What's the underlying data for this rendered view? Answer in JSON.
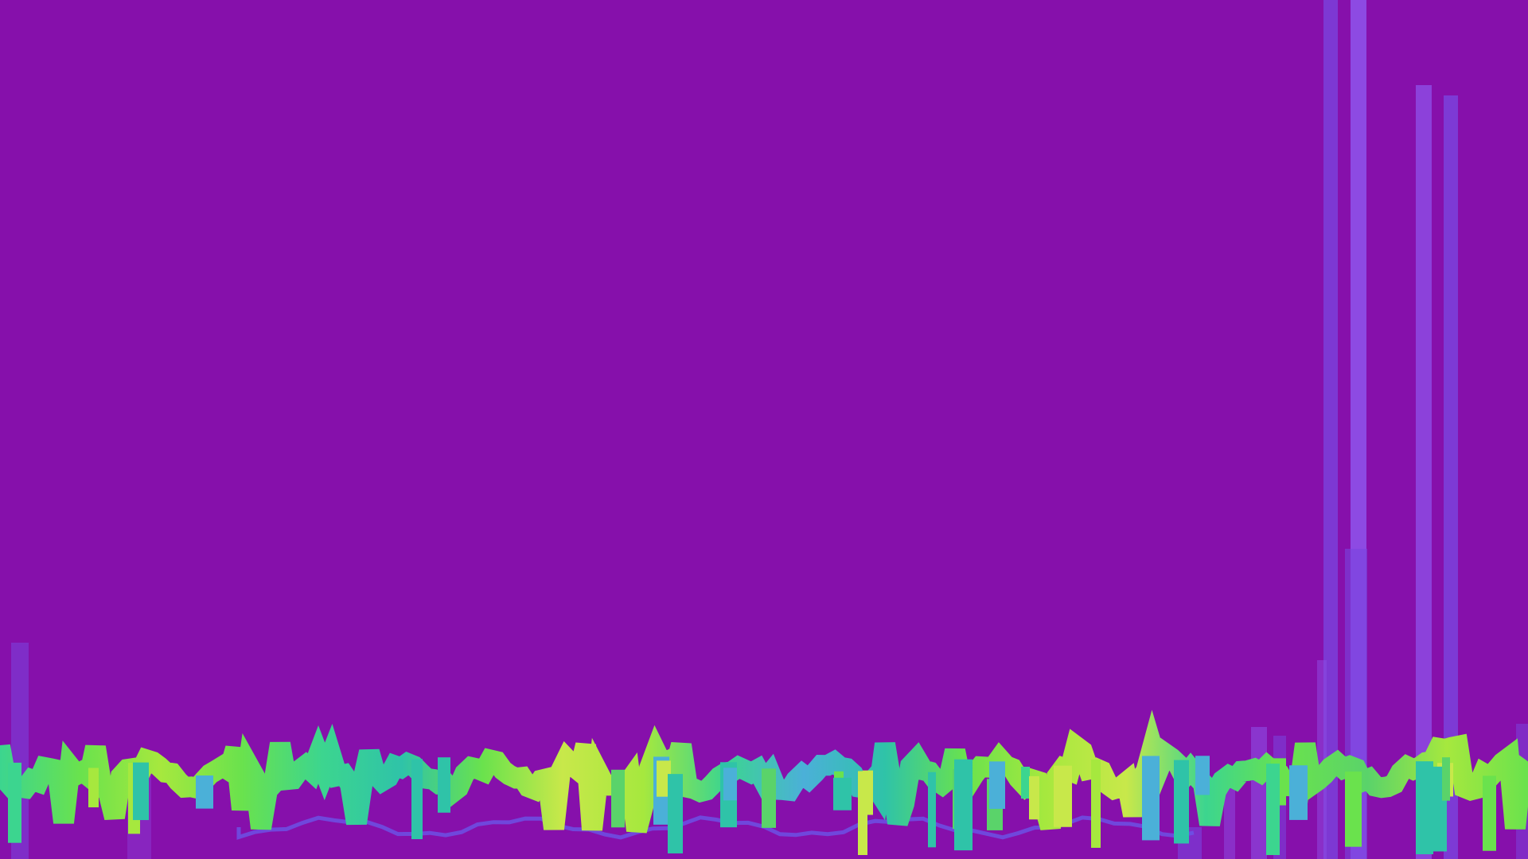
{
  "scene": {
    "background_color": "#8610ab",
    "bar_color_primary": "#7a45e0",
    "bar_color_secondary": "#8d4ee6",
    "waveform_gradient": [
      "#3cd58f",
      "#6ae24d",
      "#a6e83e",
      "#c8e84a",
      "#2fc3a8",
      "#4bb0d8",
      "#5ad36a"
    ],
    "undertrace_color": "#6a55e8"
  }
}
